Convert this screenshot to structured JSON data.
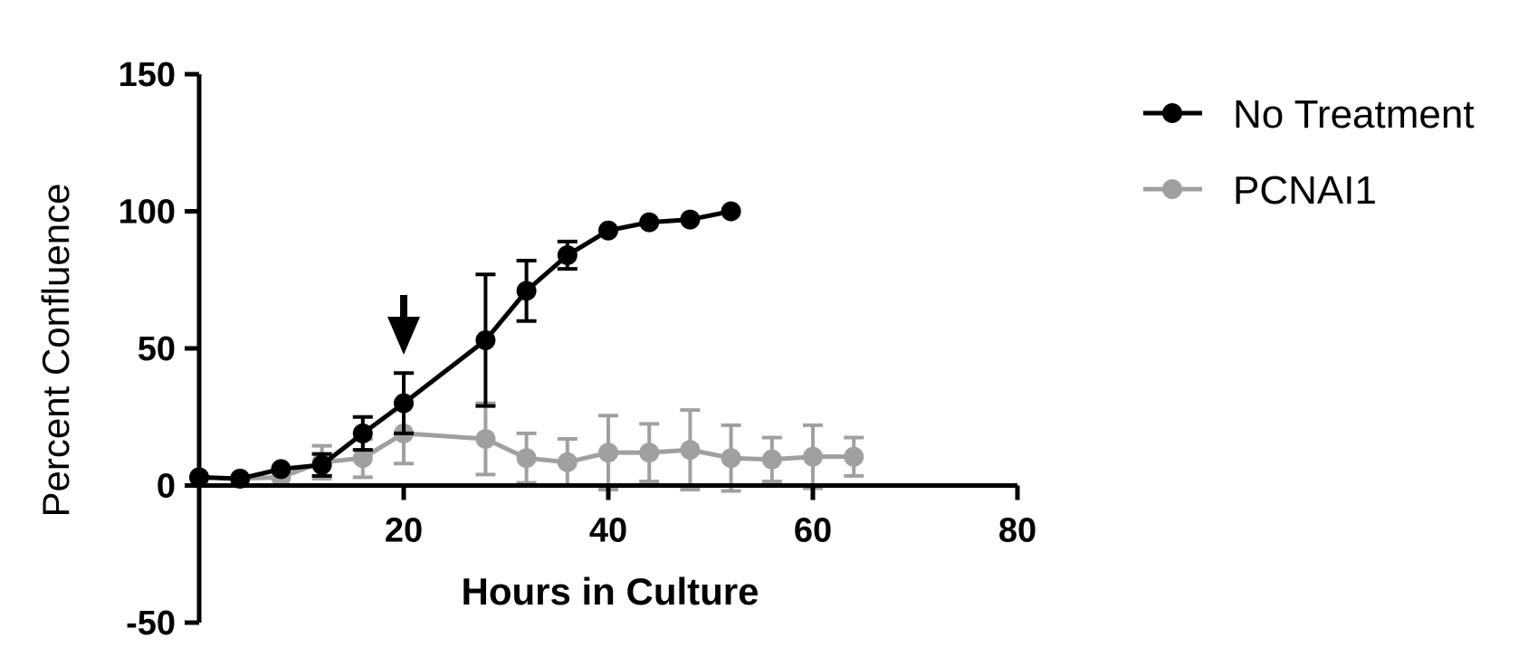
{
  "chart_data": {
    "type": "line",
    "title": "",
    "xlabel": "Hours in Culture",
    "ylabel": "Percent Confluence",
    "xlim": [
      0,
      80
    ],
    "ylim": [
      -50,
      150
    ],
    "xticks": [
      20,
      40,
      60,
      80
    ],
    "yticks": [
      -50,
      0,
      50,
      100,
      150
    ],
    "grid": false,
    "legend_position": "top-right",
    "annotation": {
      "type": "arrow",
      "x": 20,
      "direction": "down"
    },
    "series": [
      {
        "name": "No Treatment",
        "color": "#000000",
        "x": [
          0,
          4,
          8,
          12,
          16,
          20,
          28,
          32,
          36,
          40,
          44,
          48,
          52
        ],
        "y": [
          3,
          2.5,
          6,
          7.5,
          19,
          30,
          53,
          71,
          84,
          93,
          96,
          97,
          100
        ],
        "err": [
          0,
          0,
          0,
          4,
          6,
          11,
          24,
          11,
          5,
          0,
          0,
          0,
          0
        ]
      },
      {
        "name": "PCNAI1",
        "color": "#a0a0a0",
        "x": [
          0,
          4,
          8,
          12,
          16,
          20,
          28,
          32,
          36,
          40,
          44,
          48,
          52,
          56,
          60,
          64
        ],
        "y": [
          3,
          2.5,
          3,
          8.5,
          10,
          19,
          17,
          10,
          8.5,
          12,
          12,
          13,
          10,
          9.5,
          10.5,
          10.5
        ],
        "err": [
          0,
          0,
          0,
          6,
          7,
          11,
          13,
          9,
          8.5,
          13.5,
          10.5,
          14.5,
          12,
          8,
          11.5,
          7
        ]
      }
    ]
  }
}
